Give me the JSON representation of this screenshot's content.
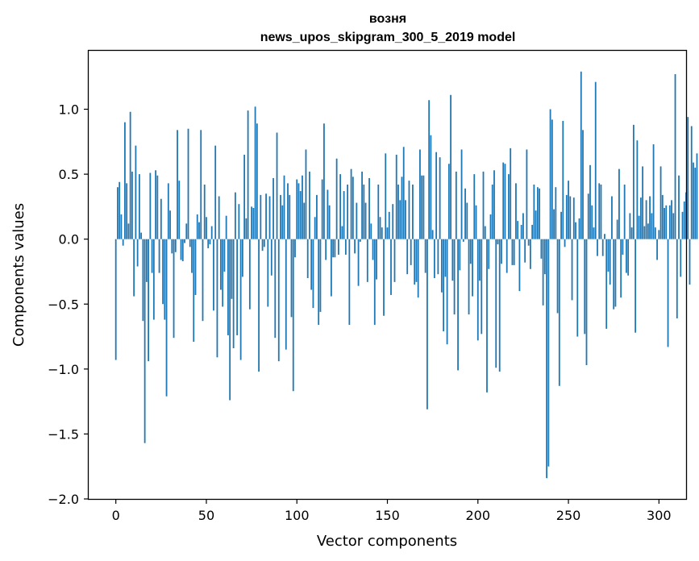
{
  "chart_data": {
    "type": "bar",
    "title": "возня",
    "subtitle": "news_upos_skipgram_300_5_2019 model",
    "xlabel": "Vector components",
    "ylabel": "Components values",
    "xlim": [
      -15,
      315
    ],
    "ylim": [
      -2.0,
      1.45
    ],
    "xticks": [
      0,
      50,
      100,
      150,
      200,
      250,
      300
    ],
    "yticks": [
      -2.0,
      -1.5,
      -1.0,
      -0.5,
      0.0,
      0.5,
      1.0
    ],
    "ytick_labels": [
      "−2.0",
      "−1.5",
      "−1.0",
      "−0.5",
      "0.0",
      "0.5",
      "1.0"
    ],
    "bar_color": "#1f77b4",
    "values": [
      -0.93,
      0.4,
      0.44,
      0.19,
      -0.05,
      0.9,
      0.43,
      0.12,
      0.98,
      0.52,
      -0.44,
      0.72,
      -0.21,
      0.5,
      0.05,
      -0.63,
      -1.57,
      -0.33,
      -0.94,
      0.51,
      -0.26,
      -0.62,
      0.53,
      0.49,
      -0.26,
      0.31,
      -0.5,
      -0.62,
      -1.21,
      0.43,
      0.22,
      -0.11,
      -0.76,
      -0.1,
      0.84,
      0.45,
      -0.16,
      -0.17,
      -0.03,
      0.12,
      0.85,
      -0.06,
      -0.26,
      -0.79,
      -0.43,
      0.19,
      0.13,
      0.84,
      -0.63,
      0.42,
      0.17,
      -0.07,
      -0.04,
      0.1,
      -0.55,
      0.72,
      -0.91,
      0.33,
      -0.39,
      -0.52,
      -0.25,
      0.18,
      -0.74,
      -1.24,
      -0.46,
      -0.84,
      0.36,
      -0.74,
      0.27,
      -0.93,
      -0.29,
      0.65,
      0.16,
      0.99,
      -0.54,
      0.25,
      0.24,
      1.02,
      0.89,
      -1.02,
      0.34,
      -0.09,
      -0.06,
      0.35,
      -0.52,
      0.33,
      -0.28,
      0.47,
      -0.76,
      0.82,
      -0.94,
      0.34,
      0.26,
      0.49,
      -0.85,
      0.43,
      0.34,
      -0.6,
      -1.17,
      -0.14,
      0.46,
      0.43,
      0.37,
      0.49,
      0.28,
      0.69,
      -0.3,
      0.52,
      -0.39,
      -0.53,
      0.17,
      0.34,
      -0.66,
      -0.56,
      0.46,
      0.89,
      -0.16,
      0.38,
      0.26,
      -0.44,
      -0.14,
      -0.14,
      0.62,
      -0.12,
      0.5,
      0.1,
      0.37,
      -0.12,
      0.42,
      -0.66,
      0.54,
      0.48,
      -0.11,
      0.28,
      -0.36,
      -0.02,
      0.52,
      0.42,
      0.28,
      -0.33,
      0.47,
      0.12,
      -0.16,
      -0.66,
      -0.31,
      0.42,
      0.17,
      0.09,
      -0.59,
      0.66,
      0.09,
      0.21,
      -0.43,
      0.27,
      -0.33,
      0.65,
      0.42,
      0.3,
      0.48,
      0.71,
      0.3,
      -0.27,
      0.45,
      -0.2,
      0.42,
      -0.35,
      -0.33,
      -0.45,
      0.69,
      0.49,
      0.49,
      -0.26,
      -1.31,
      1.07,
      0.8,
      0.07,
      -0.3,
      0.67,
      -0.27,
      0.63,
      -0.41,
      -0.71,
      -0.29,
      -0.81,
      0.58,
      1.11,
      -0.32,
      -0.58,
      0.52,
      -1.01,
      -0.24,
      0.69,
      -0.02,
      0.39,
      0.28,
      -0.58,
      -0.19,
      -0.44,
      0.5,
      0.26,
      -0.78,
      -0.32,
      -0.73,
      0.52,
      0.1,
      -1.18,
      -0.23,
      0.19,
      0.42,
      0.53,
      -0.99,
      -0.04,
      -1.02,
      -0.19,
      0.59,
      0.58,
      -0.26,
      0.5,
      0.7,
      -0.2,
      -0.2,
      0.43,
      0.14,
      -0.4,
      0.11,
      0.2,
      -0.18,
      0.69,
      -0.05,
      -0.23,
      0.11,
      0.42,
      0.22,
      0.4,
      0.39,
      -0.15,
      -0.51,
      -0.27,
      -1.84,
      -1.75,
      1.0,
      0.92,
      0.23,
      0.4,
      -0.57,
      -1.13,
      0.21,
      0.91,
      -0.06,
      0.34,
      0.45,
      0.33,
      -0.47,
      0.32,
      0.13,
      -0.75,
      0.16,
      1.29,
      0.84,
      -0.73,
      -0.97,
      0.35,
      0.57,
      0.26,
      0.09,
      1.21,
      -0.13,
      0.43,
      0.42,
      -0.13,
      0.04,
      -0.69,
      -0.25,
      -0.35,
      0.33,
      -0.54,
      -0.52,
      0.15,
      0.54,
      -0.45,
      -0.12,
      0.42,
      -0.26,
      -0.28,
      0.2,
      0.09,
      0.88,
      -0.72,
      0.76,
      0.18,
      0.32,
      0.56,
      0.1,
      0.3,
      0.12,
      0.33,
      0.2,
      0.73,
      0.09,
      -0.16,
      0.07,
      0.56,
      0.34,
      0.24,
      0.26,
      -0.83,
      0.26,
      0.3,
      0.2,
      1.27,
      -0.61,
      0.49,
      -0.29,
      0.21,
      0.29,
      0.36,
      0.94,
      -0.35,
      0.87,
      0.59,
      0.55,
      0.66
    ]
  }
}
